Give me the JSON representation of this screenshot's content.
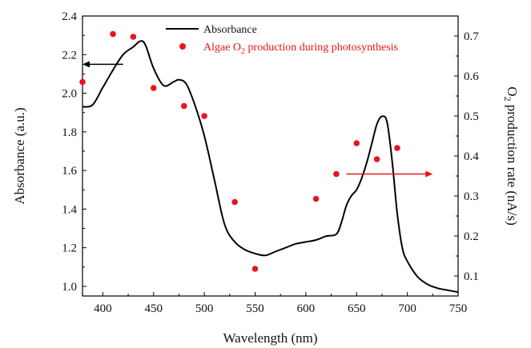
{
  "chart_data": {
    "type": "line",
    "xlabel": "Wavelength (nm)",
    "xlim": [
      380,
      750
    ],
    "x_ticks": [
      400,
      450,
      500,
      550,
      600,
      650,
      700,
      750
    ],
    "left_axis": {
      "label": "Absorbance (a.u.)",
      "ylim": [
        0.95,
        2.4
      ],
      "ticks": [
        "1.0",
        "1.2",
        "1.4",
        "1.6",
        "1.8",
        "2.0",
        "2.2",
        "2.4"
      ]
    },
    "right_axis": {
      "label_parts": [
        "O",
        "2",
        " production rate (nA/s)"
      ],
      "ylim": [
        0.05,
        0.75
      ],
      "ticks": [
        "0.1",
        "0.2",
        "0.3",
        "0.4",
        "0.5",
        "0.6",
        "0.7"
      ]
    },
    "legend": {
      "placement": "top-right",
      "absorbance": "Absorbance",
      "o2_parts": [
        "Algae O",
        "2",
        " production during photosynthesis"
      ]
    },
    "colors": {
      "absorbance": "#000000",
      "o2": "#e8141c"
    },
    "series": [
      {
        "name": "Absorbance",
        "axis": "left",
        "style": "line",
        "x": [
          380,
          390,
          400,
          410,
          420,
          430,
          437,
          442,
          450,
          460,
          470,
          475,
          482,
          490,
          500,
          510,
          520,
          530,
          540,
          550,
          560,
          570,
          580,
          590,
          600,
          610,
          620,
          630,
          635,
          640,
          645,
          650,
          655,
          660,
          665,
          670,
          675,
          680,
          685,
          690,
          695,
          700,
          710,
          720,
          730,
          740,
          750
        ],
        "y": [
          1.93,
          1.94,
          2.03,
          2.12,
          2.2,
          2.24,
          2.27,
          2.25,
          2.13,
          2.04,
          2.06,
          2.07,
          2.05,
          1.95,
          1.78,
          1.55,
          1.32,
          1.23,
          1.19,
          1.17,
          1.16,
          1.18,
          1.2,
          1.22,
          1.23,
          1.24,
          1.26,
          1.27,
          1.33,
          1.42,
          1.47,
          1.5,
          1.56,
          1.64,
          1.74,
          1.84,
          1.88,
          1.85,
          1.65,
          1.38,
          1.2,
          1.13,
          1.05,
          1.01,
          0.99,
          0.98,
          0.97
        ]
      },
      {
        "name": "Algae O2 production during photosynthesis",
        "axis": "right",
        "style": "scatter",
        "x": [
          380,
          410,
          430,
          450,
          480,
          500,
          530,
          550,
          610,
          630,
          650,
          670,
          690
        ],
        "y": [
          0.585,
          0.705,
          0.698,
          0.57,
          0.525,
          0.5,
          0.285,
          0.118,
          0.293,
          0.355,
          0.432,
          0.392,
          0.42
        ]
      }
    ],
    "annotations": [
      {
        "type": "arrow",
        "direction": "left",
        "points_to": "left_axis",
        "y": 2.15,
        "x_from": 420,
        "x_to": 380
      },
      {
        "type": "arrow",
        "direction": "right",
        "points_to": "right_axis",
        "y": 0.355,
        "x_from": 640,
        "x_to": 725
      }
    ]
  }
}
